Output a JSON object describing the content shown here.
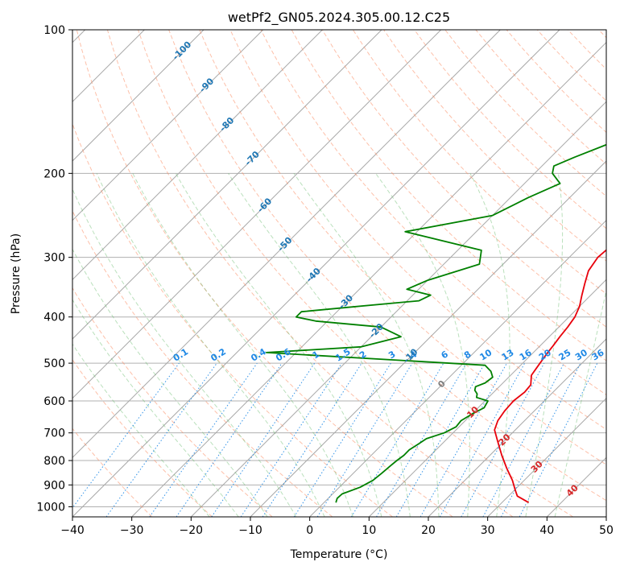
{
  "chart_data": {
    "type": "line",
    "title": "wetPf2_GN05.2024.305.00.12.C25",
    "xlabel": "Temperature (°C)",
    "ylabel": "Pressure (hPa)",
    "xlim": [
      -40,
      50
    ],
    "ylim": [
      1050,
      100
    ],
    "y_scale": "log",
    "x_ticks": [
      "−40",
      "−30",
      "−20",
      "−10",
      "0",
      "10",
      "20",
      "30",
      "40",
      "50"
    ],
    "y_ticks": [
      "100",
      "200",
      "300",
      "400",
      "500",
      "600",
      "700",
      "800",
      "900",
      "1000"
    ],
    "grid": true,
    "colors": {
      "temperature": "#e8000b",
      "dewpoint": "#008000",
      "isotherm_label": "#1f77b4",
      "mixing_ratio": "#1e88e5",
      "moist_adiabat_label": "#d62728",
      "dry_adiabat": "#fc8d62",
      "moist_adiabat": "#66bb6a"
    },
    "series": [
      {
        "key": "temperature",
        "points": [
          [
            34.5,
            980
          ],
          [
            31.5,
            950
          ],
          [
            30,
            920
          ],
          [
            28,
            880
          ],
          [
            25,
            830
          ],
          [
            22,
            780
          ],
          [
            19,
            730
          ],
          [
            16.5,
            690
          ],
          [
            15.5,
            660
          ],
          [
            15,
            630
          ],
          [
            14.8,
            600
          ],
          [
            15.2,
            575
          ],
          [
            15,
            555
          ],
          [
            13.5,
            530
          ],
          [
            13,
            505
          ],
          [
            12.5,
            480
          ],
          [
            12.2,
            460
          ],
          [
            11.8,
            440
          ],
          [
            11.5,
            420
          ],
          [
            11,
            400
          ],
          [
            10,
            380
          ],
          [
            8.5,
            360
          ],
          [
            7,
            340
          ],
          [
            5.5,
            320
          ],
          [
            4.8,
            300
          ],
          [
            5,
            290
          ],
          [
            5.5,
            280
          ],
          [
            6,
            265
          ],
          [
            6.2,
            240
          ],
          [
            6.1,
            220
          ],
          [
            6.5,
            200
          ],
          [
            6.8,
            185
          ],
          [
            7,
            170
          ],
          [
            7.3,
            150
          ],
          [
            7.1,
            135
          ],
          [
            6.8,
            120
          ],
          [
            7.8,
            110
          ],
          [
            9.5,
            105
          ],
          [
            12,
            100
          ]
        ]
      },
      {
        "key": "dewpoint",
        "points": [
          [
            2,
            980
          ],
          [
            1.5,
            960
          ],
          [
            1.6,
            940
          ],
          [
            3.5,
            910
          ],
          [
            4.5,
            880
          ],
          [
            4.8,
            850
          ],
          [
            5,
            820
          ],
          [
            5.2,
            800
          ],
          [
            5.5,
            780
          ],
          [
            5.5,
            760
          ],
          [
            6,
            740
          ],
          [
            6.5,
            720
          ],
          [
            8.5,
            700
          ],
          [
            9.5,
            680
          ],
          [
            9.3,
            660
          ],
          [
            10,
            640
          ],
          [
            11,
            620
          ],
          [
            10.5,
            600
          ],
          [
            8,
            590
          ],
          [
            7.5,
            580
          ],
          [
            6.5,
            570
          ],
          [
            6,
            560
          ],
          [
            7,
            550
          ],
          [
            7.3,
            535
          ],
          [
            6,
            520
          ],
          [
            4,
            505
          ],
          [
            -35,
            475
          ],
          [
            -20,
            462
          ],
          [
            -15,
            440
          ],
          [
            -20,
            420
          ],
          [
            -32,
            408
          ],
          [
            -36,
            400
          ],
          [
            -36,
            390
          ],
          [
            -29,
            382
          ],
          [
            -18,
            370
          ],
          [
            -17,
            360
          ],
          [
            -22,
            350
          ],
          [
            -20,
            335
          ],
          [
            -14,
            310
          ],
          [
            -16,
            290
          ],
          [
            -32,
            265
          ],
          [
            -20,
            245
          ],
          [
            -17,
            225
          ],
          [
            -14,
            210
          ],
          [
            -17,
            200
          ],
          [
            -18,
            193
          ],
          [
            -16,
            185
          ],
          [
            -13,
            175
          ],
          [
            -10,
            165
          ],
          [
            -7,
            155
          ],
          [
            -3,
            145
          ],
          [
            -1,
            135
          ],
          [
            0,
            125
          ],
          [
            1,
            115
          ],
          [
            1.2,
            100
          ]
        ]
      }
    ],
    "isotherm_labels": [
      "-100",
      "-90",
      "-80",
      "-70",
      "-60",
      "-50",
      "-40",
      "-30",
      "-20",
      "-10",
      "0",
      "10",
      "20",
      "30",
      "40"
    ],
    "mixing_ratio_labels": [
      "0.1",
      "0.2",
      "0.4",
      "0.6",
      "1",
      "1.5",
      "2",
      "3",
      "4",
      "6",
      "8",
      "10",
      "13",
      "16",
      "20",
      "25",
      "30",
      "36"
    ]
  }
}
